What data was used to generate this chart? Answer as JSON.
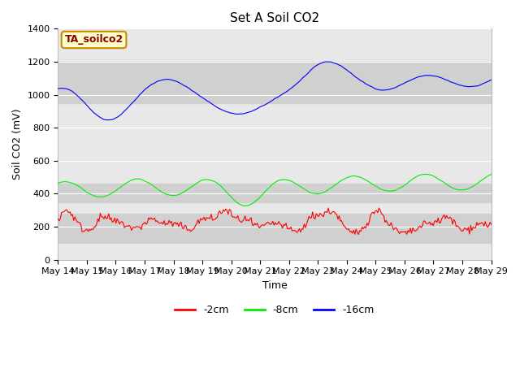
{
  "title": "Set A Soil CO2",
  "xlabel": "Time",
  "ylabel": "Soil CO2 (mV)",
  "ylim": [
    0,
    1400
  ],
  "yticks": [
    0,
    200,
    400,
    600,
    800,
    1000,
    1200,
    1400
  ],
  "x_labels": [
    "May 14",
    "May 15",
    "May 16",
    "May 17",
    "May 18",
    "May 19",
    "May 20",
    "May 21",
    "May 22",
    "May 23",
    "May 24",
    "May 25",
    "May 26",
    "May 27",
    "May 28",
    "May 29"
  ],
  "legend_label": "TA_soilco2",
  "line_colors": {
    "neg2cm": "#ff0000",
    "neg8cm": "#00ee00",
    "neg16cm": "#0000ff"
  },
  "legend_entries": [
    "-2cm",
    "-8cm",
    "-16cm"
  ],
  "plot_bg_color": "#e8e8e8",
  "shaded_band_color": "#d0d0d0",
  "shaded_bands": [
    {
      "ymin": 950,
      "ymax": 1200,
      "color": "#d0d0d0"
    },
    {
      "ymin": 350,
      "ymax": 460,
      "color": "#d0d0d0"
    },
    {
      "ymin": 100,
      "ymax": 280,
      "color": "#d0d0d0"
    }
  ],
  "figure_bg_color": "#ffffff",
  "title_fontsize": 11,
  "axis_label_fontsize": 9,
  "tick_fontsize": 8
}
